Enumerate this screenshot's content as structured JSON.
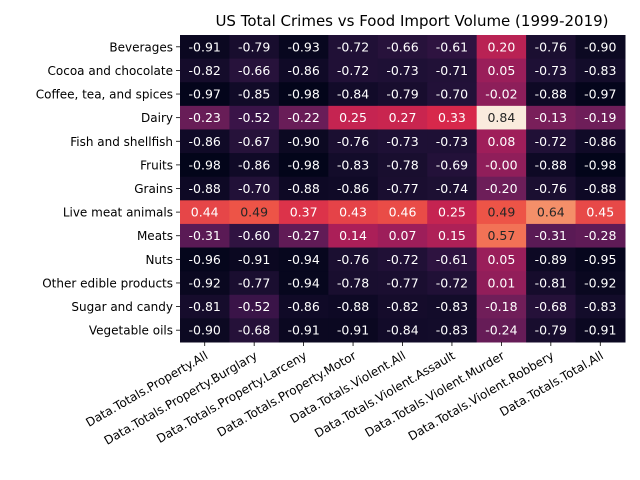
{
  "chart_data": {
    "type": "heatmap",
    "title": "US Total Crimes vs Food Import Volume (1999-2019)",
    "rows": [
      "Beverages",
      "Cocoa and chocolate",
      "Coffee, tea, and spices",
      "Dairy",
      "Fish and shellfish",
      "Fruits",
      "Grains",
      "Live meat animals",
      "Meats",
      "Nuts",
      "Other edible products",
      "Sugar and candy",
      "Vegetable oils"
    ],
    "columns": [
      "Data.Totals.Property.All",
      "Data.Totals.Property.Burglary",
      "Data.Totals.Property.Larceny",
      "Data.Totals.Property.Motor",
      "Data.Totals.Violent.All",
      "Data.Totals.Violent.Assault",
      "Data.Totals.Violent.Murder",
      "Data.Totals.Violent.Robbery",
      "Data.Totals.Total.All"
    ],
    "values": [
      [
        -0.91,
        -0.79,
        -0.93,
        -0.72,
        -0.66,
        -0.61,
        0.2,
        -0.76,
        -0.9
      ],
      [
        -0.82,
        -0.66,
        -0.86,
        -0.72,
        -0.73,
        -0.71,
        0.05,
        -0.73,
        -0.83
      ],
      [
        -0.97,
        -0.85,
        -0.98,
        -0.84,
        -0.79,
        -0.7,
        -0.02,
        -0.88,
        -0.97
      ],
      [
        -0.23,
        -0.52,
        -0.22,
        0.25,
        0.27,
        0.33,
        0.84,
        -0.13,
        -0.19
      ],
      [
        -0.86,
        -0.67,
        -0.9,
        -0.76,
        -0.73,
        -0.73,
        0.08,
        -0.72,
        -0.86
      ],
      [
        -0.98,
        -0.86,
        -0.98,
        -0.83,
        -0.78,
        -0.69,
        -0.0,
        -0.88,
        -0.98
      ],
      [
        -0.88,
        -0.7,
        -0.88,
        -0.86,
        -0.77,
        -0.74,
        -0.2,
        -0.76,
        -0.88
      ],
      [
        0.44,
        0.49,
        0.37,
        0.43,
        0.46,
        0.25,
        0.49,
        0.64,
        0.45
      ],
      [
        -0.31,
        -0.6,
        -0.27,
        0.14,
        0.07,
        0.15,
        0.57,
        -0.31,
        -0.28
      ],
      [
        -0.96,
        -0.91,
        -0.94,
        -0.76,
        -0.72,
        -0.61,
        0.05,
        -0.89,
        -0.95
      ],
      [
        -0.92,
        -0.77,
        -0.94,
        -0.78,
        -0.77,
        -0.72,
        0.01,
        -0.81,
        -0.92
      ],
      [
        -0.81,
        -0.52,
        -0.86,
        -0.88,
        -0.82,
        -0.83,
        -0.18,
        -0.68,
        -0.83
      ],
      [
        -0.9,
        -0.68,
        -0.91,
        -0.91,
        -0.84,
        -0.83,
        -0.24,
        -0.79,
        -0.91
      ]
    ],
    "value_format": "0.00",
    "colormap": "rocket",
    "color_range": [
      -0.98,
      0.84
    ],
    "colorbar": false,
    "grid": false
  }
}
